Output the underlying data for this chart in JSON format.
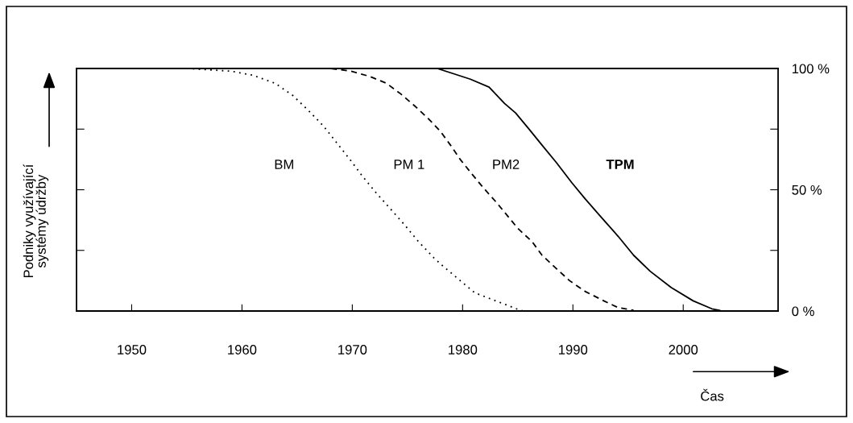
{
  "chart_data": {
    "type": "line",
    "ylabel": "Podniky využívající\nsystémy údržby",
    "xlabel": "Čas",
    "xlim": [
      1945,
      2008.6
    ],
    "xticks": [
      1950,
      1960,
      1970,
      1980,
      1990,
      2000
    ],
    "ylim": [
      0,
      100
    ],
    "yticks": [
      {
        "value": 0,
        "label": "0 %"
      },
      {
        "value": 25,
        "label": null
      },
      {
        "value": 50,
        "label": "50 %"
      },
      {
        "value": 75,
        "label": null
      },
      {
        "value": 100,
        "label": "100 %"
      }
    ],
    "grid": false,
    "legend": false,
    "series": [
      {
        "color": "#000000",
        "line_style": "dotted",
        "x": [
          1945,
          1955,
          1959.0,
          1961.0,
          1963.0,
          1964.6,
          1966.0,
          1967.4,
          1968.6,
          1969.8,
          1970.9,
          1972.2,
          1973.5,
          1974.8,
          1976.0,
          1977.4,
          1978.2,
          1981.1,
          1984.9,
          1985.5
        ],
        "values": [
          100,
          100,
          98.9,
          97.2,
          93.9,
          88.9,
          82.8,
          76.2,
          69.3,
          62.4,
          55.7,
          48.5,
          41.9,
          35.2,
          28.6,
          21.9,
          18.6,
          7.5,
          0.9,
          0
        ]
      },
      {
        "color": "#000000",
        "line_style": "dashed",
        "x": [
          1945,
          1968,
          1969.9,
          1971.6,
          1973.1,
          1974.4,
          1975.6,
          1976.9,
          1978.0,
          1978.9,
          1979.8,
          1980.9,
          1981.9,
          1983.1,
          1984.1,
          1985.0,
          1986.3,
          1987.2,
          1988.5,
          1989.7,
          1991.1,
          1992.8,
          1994.1,
          1995.5
        ],
        "values": [
          100,
          100,
          98.9,
          96.7,
          93.9,
          89.5,
          84.8,
          79.3,
          74.0,
          68.4,
          62.4,
          56.2,
          50.7,
          44.6,
          39.1,
          34.1,
          28.6,
          23.0,
          17.5,
          12.5,
          8.1,
          4.2,
          1.4,
          0.3
        ]
      },
      {
        "color": "#000000",
        "line_style": "solid",
        "x": [
          1945,
          1977.7,
          1980.7,
          1982.4,
          1983.8,
          1984.8,
          1986.0,
          1987.2,
          1988.5,
          1989.9,
          1991.1,
          1992.6,
          1994.1,
          1995.5,
          1997.0,
          1998.9,
          2000.9,
          2002.6,
          2003.3
        ],
        "values": [
          100,
          100,
          95.6,
          92.3,
          85.6,
          81.7,
          75.1,
          68.4,
          61.2,
          52.9,
          46.3,
          38.5,
          30.8,
          23.0,
          16.4,
          9.7,
          4.2,
          0.9,
          0.3
        ]
      }
    ],
    "annotations": [
      "BM",
      "PM 1",
      "PM2",
      "TPM"
    ]
  }
}
